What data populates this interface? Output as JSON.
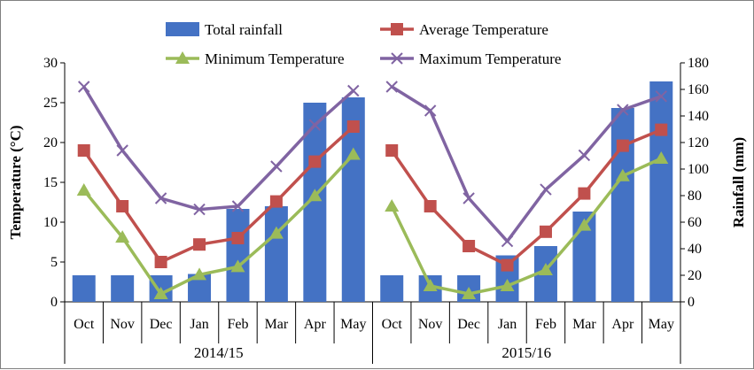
{
  "chart_data": {
    "type": "bar+line",
    "groups": [
      "2014/15",
      "2015/16"
    ],
    "categories": [
      "Oct",
      "Nov",
      "Dec",
      "Jan",
      "Feb",
      "Mar",
      "Apr",
      "May"
    ],
    "y_left": {
      "label": "Temperature (°C)",
      "range": [
        0,
        30
      ],
      "ticks": [
        "0",
        "5",
        "10",
        "15",
        "20",
        "25",
        "30"
      ]
    },
    "y_right": {
      "label": "Rainfall (mm)",
      "range": [
        0,
        180
      ],
      "ticks": [
        "0",
        "20",
        "40",
        "60",
        "80",
        "100",
        "120",
        "140",
        "160",
        "180"
      ]
    },
    "legend": {
      "placement": "top",
      "items": [
        {
          "name": "Total rainfall",
          "type": "bar",
          "color": "#4472c4"
        },
        {
          "name": "Average Temperature",
          "type": "line",
          "marker": "square",
          "color": "#c0504d"
        },
        {
          "name": "Minimum Temperature",
          "type": "line",
          "marker": "triangle",
          "color": "#9bbb59"
        },
        {
          "name": "Maximum Temperature",
          "type": "line",
          "marker": "x",
          "color": "#8064a2"
        }
      ]
    },
    "series": [
      {
        "name": "Total rainfall",
        "axis": "right",
        "values": [
          [
            20,
            20,
            20,
            21,
            70,
            72,
            150,
            154
          ],
          [
            20,
            20,
            20,
            35,
            42,
            68,
            146,
            166
          ]
        ]
      },
      {
        "name": "Average Temperature",
        "axis": "left",
        "values": [
          [
            19,
            12,
            5,
            7.2,
            8,
            12.6,
            17.6,
            22
          ],
          [
            19,
            12,
            7,
            4.6,
            8.8,
            13.6,
            19.6,
            21.6
          ]
        ]
      },
      {
        "name": "Minimum Temperature",
        "axis": "left",
        "values": [
          [
            14,
            8.1,
            1.0,
            3.4,
            4.4,
            8.6,
            13.3,
            18.5
          ],
          [
            12,
            2.0,
            1.0,
            2.0,
            4.0,
            9.6,
            15.8,
            18.0
          ]
        ]
      },
      {
        "name": "Maximum Temperature",
        "axis": "left",
        "values": [
          [
            27,
            19,
            13,
            11.6,
            12,
            17,
            22.2,
            26.5
          ],
          [
            27,
            24,
            13,
            7.6,
            14.1,
            18.4,
            24.1,
            25.8
          ]
        ]
      }
    ]
  }
}
